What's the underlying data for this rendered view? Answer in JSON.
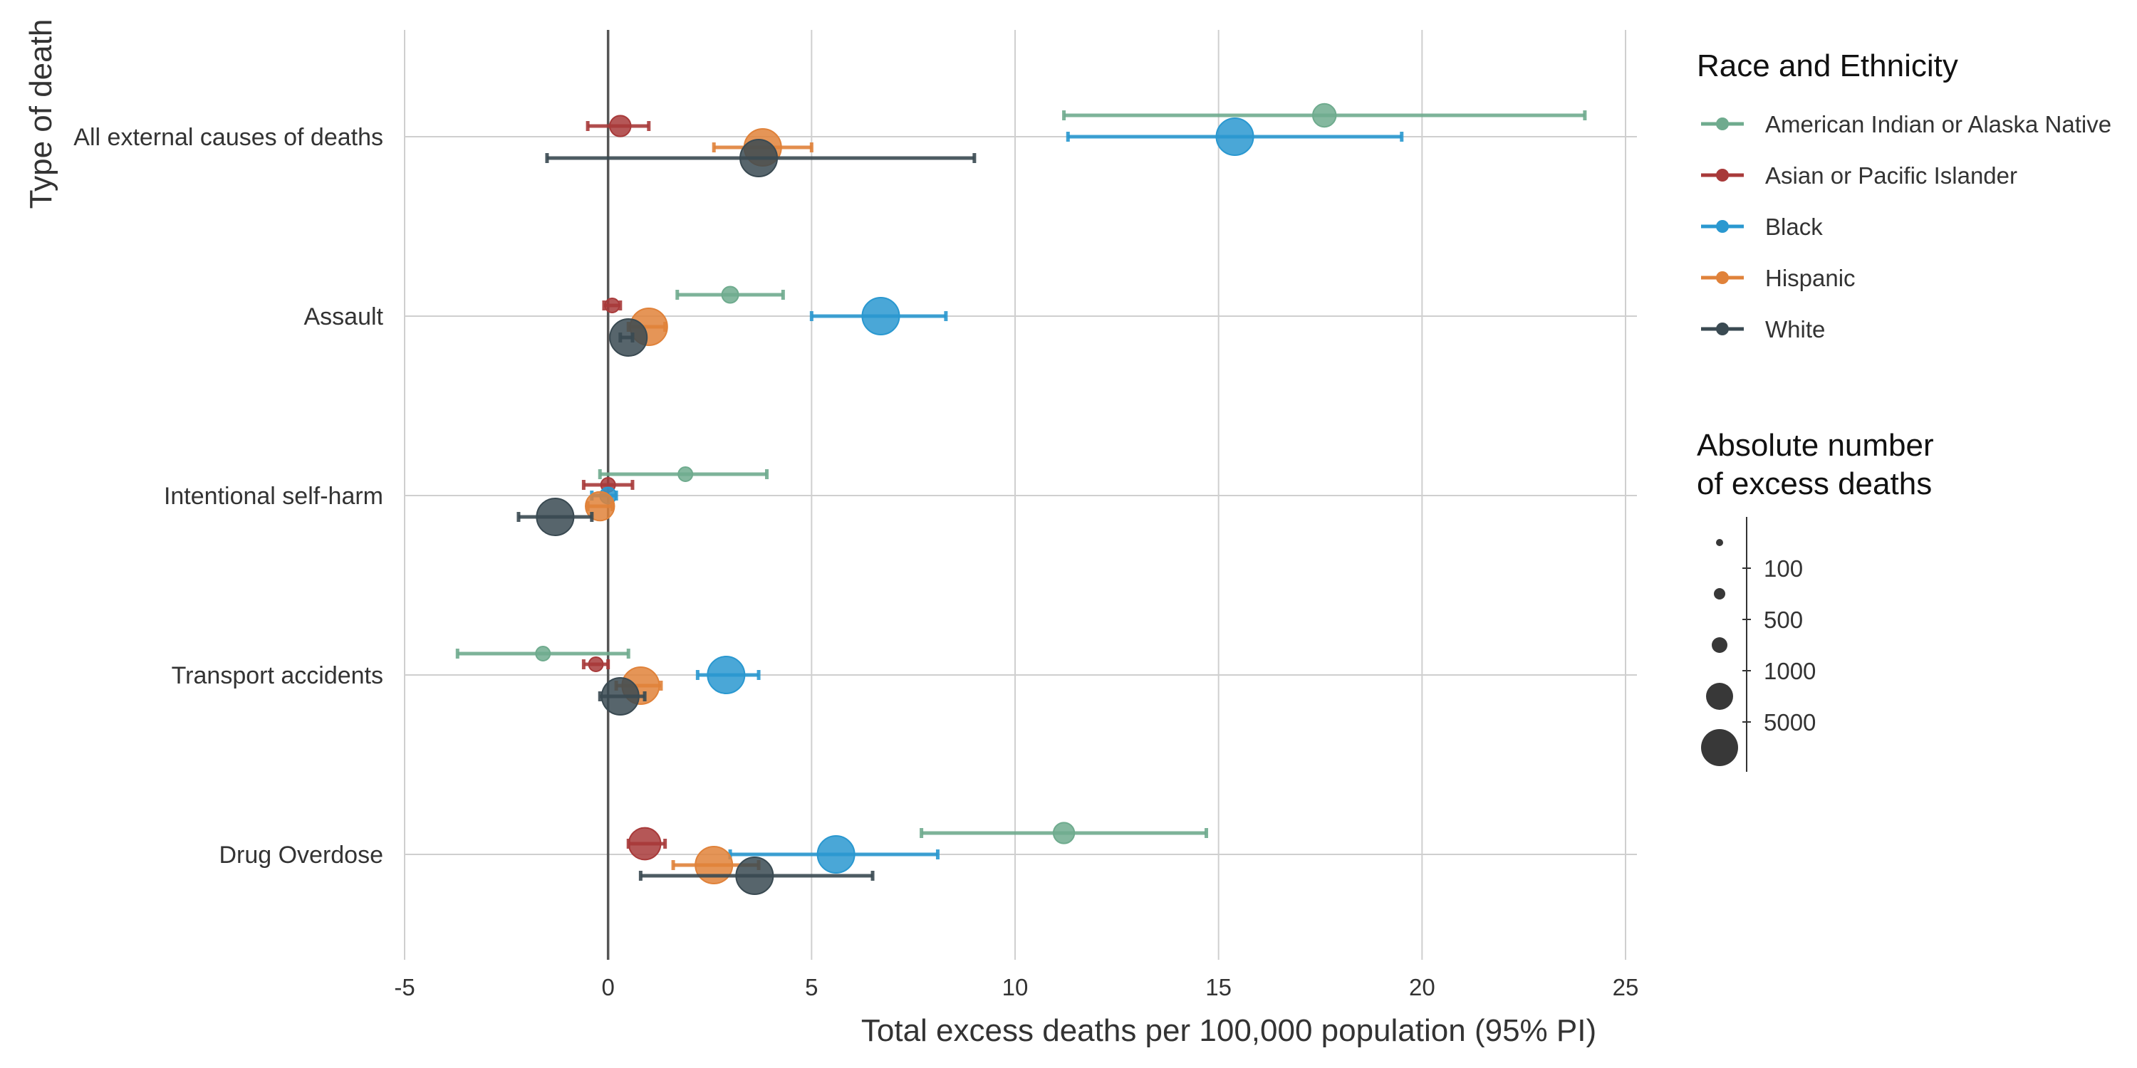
{
  "chart_data": {
    "type": "scatter",
    "subtype": "forest-plot-with-intervals",
    "xlabel": "Total excess deaths per 100,000 population (95% PI)",
    "ylabel": "Type of death",
    "xlim": [
      -5,
      25
    ],
    "xticks": [
      -5,
      0,
      5,
      10,
      15,
      20,
      25
    ],
    "xtick_labels": [
      "-5",
      "0",
      "5",
      "10",
      "15",
      "20",
      "25"
    ],
    "grid": true,
    "categories": [
      "All external causes of deaths",
      "Assault",
      "Intentional self-harm",
      "Transport accidents",
      "Drug Overdose"
    ],
    "legend": {
      "title": "Race and Ethnicity",
      "placement": "top-right outside"
    },
    "series": [
      {
        "name": "American Indian or Alaska Native",
        "color": "#6fab8e",
        "points": [
          {
            "category": "All external causes of deaths",
            "estimate": 17.6,
            "lower": 11.2,
            "upper": 24.0,
            "excess_deaths": 80
          },
          {
            "category": "Assault",
            "estimate": 3.0,
            "lower": 1.7,
            "upper": 4.3,
            "excess_deaths": 30
          },
          {
            "category": "Intentional self-harm",
            "estimate": 1.9,
            "lower": -0.2,
            "upper": 3.9,
            "excess_deaths": 20
          },
          {
            "category": "Transport accidents",
            "estimate": -1.6,
            "lower": -3.7,
            "upper": 0.5,
            "excess_deaths": 20
          },
          {
            "category": "Drug Overdose",
            "estimate": 11.2,
            "lower": 7.7,
            "upper": 14.7,
            "excess_deaths": 60
          }
        ]
      },
      {
        "name": "Asian or Pacific Islander",
        "color": "#a83a3a",
        "points": [
          {
            "category": "All external causes of deaths",
            "estimate": 0.3,
            "lower": -0.5,
            "upper": 1.0,
            "excess_deaths": 60
          },
          {
            "category": "Assault",
            "estimate": 0.1,
            "lower": -0.1,
            "upper": 0.3,
            "excess_deaths": 20
          },
          {
            "category": "Intentional self-harm",
            "estimate": 0.0,
            "lower": -0.6,
            "upper": 0.6,
            "excess_deaths": 20
          },
          {
            "category": "Transport accidents",
            "estimate": -0.3,
            "lower": -0.6,
            "upper": 0.0,
            "excess_deaths": 20
          },
          {
            "category": "Drug Overdose",
            "estimate": 0.9,
            "lower": 0.5,
            "upper": 1.4,
            "excess_deaths": 200
          }
        ]
      },
      {
        "name": "Black",
        "color": "#2a98d0",
        "points": [
          {
            "category": "All external causes of deaths",
            "estimate": 15.4,
            "lower": 11.3,
            "upper": 19.5,
            "excess_deaths": 8000
          },
          {
            "category": "Assault",
            "estimate": 6.7,
            "lower": 5.0,
            "upper": 8.3,
            "excess_deaths": 3000
          },
          {
            "category": "Intentional self-harm",
            "estimate": 0.0,
            "lower": -0.4,
            "upper": 0.2,
            "excess_deaths": 30
          },
          {
            "category": "Transport accidents",
            "estimate": 2.9,
            "lower": 2.2,
            "upper": 3.7,
            "excess_deaths": 1500
          },
          {
            "category": "Drug Overdose",
            "estimate": 5.6,
            "lower": 3.0,
            "upper": 8.1,
            "excess_deaths": 2500
          }
        ]
      },
      {
        "name": "Hispanic",
        "color": "#e0823a",
        "points": [
          {
            "category": "All external causes of deaths",
            "estimate": 3.8,
            "lower": 2.6,
            "upper": 5.0,
            "excess_deaths": 3500
          },
          {
            "category": "Assault",
            "estimate": 1.0,
            "lower": 0.5,
            "upper": 1.4,
            "excess_deaths": 700
          },
          {
            "category": "Intentional self-harm",
            "estimate": -0.2,
            "lower": -0.5,
            "upper": 0.1,
            "excess_deaths": 150
          },
          {
            "category": "Transport accidents",
            "estimate": 0.8,
            "lower": 0.2,
            "upper": 1.3,
            "excess_deaths": 400
          },
          {
            "category": "Drug Overdose",
            "estimate": 2.6,
            "lower": 1.6,
            "upper": 3.7,
            "excess_deaths": 3000
          }
        ]
      },
      {
        "name": "White",
        "color": "#3a4a52",
        "points": [
          {
            "category": "All external causes of deaths",
            "estimate": 3.7,
            "lower": -1.5,
            "upper": 9.0,
            "excess_deaths": 8000
          },
          {
            "category": "Assault",
            "estimate": 0.5,
            "lower": 0.3,
            "upper": 0.6,
            "excess_deaths": 700
          },
          {
            "category": "Intentional self-harm",
            "estimate": -1.3,
            "lower": -2.2,
            "upper": -0.4,
            "excess_deaths": 2500
          },
          {
            "category": "Transport accidents",
            "estimate": 0.3,
            "lower": -0.2,
            "upper": 0.9,
            "excess_deaths": 600
          },
          {
            "category": "Drug Overdose",
            "estimate": 3.6,
            "lower": 0.8,
            "upper": 6.5,
            "excess_deaths": 8000
          }
        ]
      }
    ],
    "size_legend": {
      "title_lines": [
        "Absolute number",
        "of excess deaths"
      ],
      "labels": [
        "100",
        "500",
        "1000",
        "5000"
      ]
    }
  }
}
